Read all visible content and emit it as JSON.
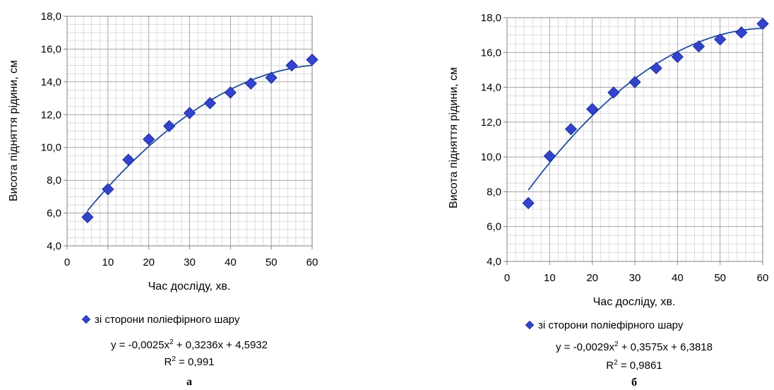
{
  "chart_data": [
    {
      "type": "scatter",
      "panel_label": "а",
      "xlabel": "Час досліду, хв.",
      "ylabel": "Висота підняття рідини, см",
      "xlim": [
        0,
        60
      ],
      "ylim": [
        4.0,
        18.0
      ],
      "x_ticks": [
        0,
        10,
        20,
        30,
        40,
        50,
        60
      ],
      "y_ticks": [
        "4,0",
        "6,0",
        "8,0",
        "10,0",
        "12,0",
        "14,0",
        "16,0",
        "18,0"
      ],
      "grid": true,
      "legend_position": "bottom",
      "series": [
        {
          "name": "зі сторони поліефірного шару",
          "color": "#3344cc",
          "marker": "diamond",
          "x": [
            5,
            10,
            15,
            20,
            25,
            30,
            35,
            40,
            45,
            50,
            55,
            60
          ],
          "y": [
            5.75,
            7.45,
            9.25,
            10.5,
            11.3,
            12.1,
            12.7,
            13.35,
            13.9,
            14.25,
            15.0,
            15.35
          ]
        }
      ],
      "trendline": {
        "type": "polynomial",
        "a": -0.0025,
        "b": 0.3236,
        "c": 4.5932,
        "color": "#1f4e9e"
      },
      "equation_pre": "y = -0,0025x",
      "equation_sup": "2",
      "equation_post": " + 0,3236x + 4,5932",
      "r2_pre": "R",
      "r2_sup": "2",
      "r2_post": " = 0,991"
    },
    {
      "type": "scatter",
      "panel_label": "б",
      "xlabel": "Час досліду, хв.",
      "ylabel": "Висота підняття рідини, см",
      "xlim": [
        0,
        60
      ],
      "ylim": [
        4.0,
        18.0
      ],
      "x_ticks": [
        0,
        10,
        20,
        30,
        40,
        50,
        60
      ],
      "y_ticks": [
        "4,0",
        "6,0",
        "8,0",
        "10,0",
        "12,0",
        "14,0",
        "16,0",
        "18,0"
      ],
      "grid": true,
      "legend_position": "bottom",
      "series": [
        {
          "name": "зі сторони поліефірного шару",
          "color": "#3344cc",
          "marker": "diamond",
          "x": [
            5,
            10,
            15,
            20,
            25,
            30,
            35,
            40,
            45,
            50,
            55,
            60
          ],
          "y": [
            7.35,
            10.05,
            11.6,
            12.75,
            13.7,
            14.3,
            15.1,
            15.75,
            16.35,
            16.75,
            17.15,
            17.65
          ]
        }
      ],
      "trendline": {
        "type": "polynomial",
        "a": -0.0029,
        "b": 0.3575,
        "c": 6.3818,
        "color": "#1f4e9e"
      },
      "equation_pre": "y = -0,0029x",
      "equation_sup": "2",
      "equation_post": " + 0,3575x + 6,3818",
      "r2_pre": "R",
      "r2_sup": "2",
      "r2_post": " = 0,9861"
    }
  ]
}
